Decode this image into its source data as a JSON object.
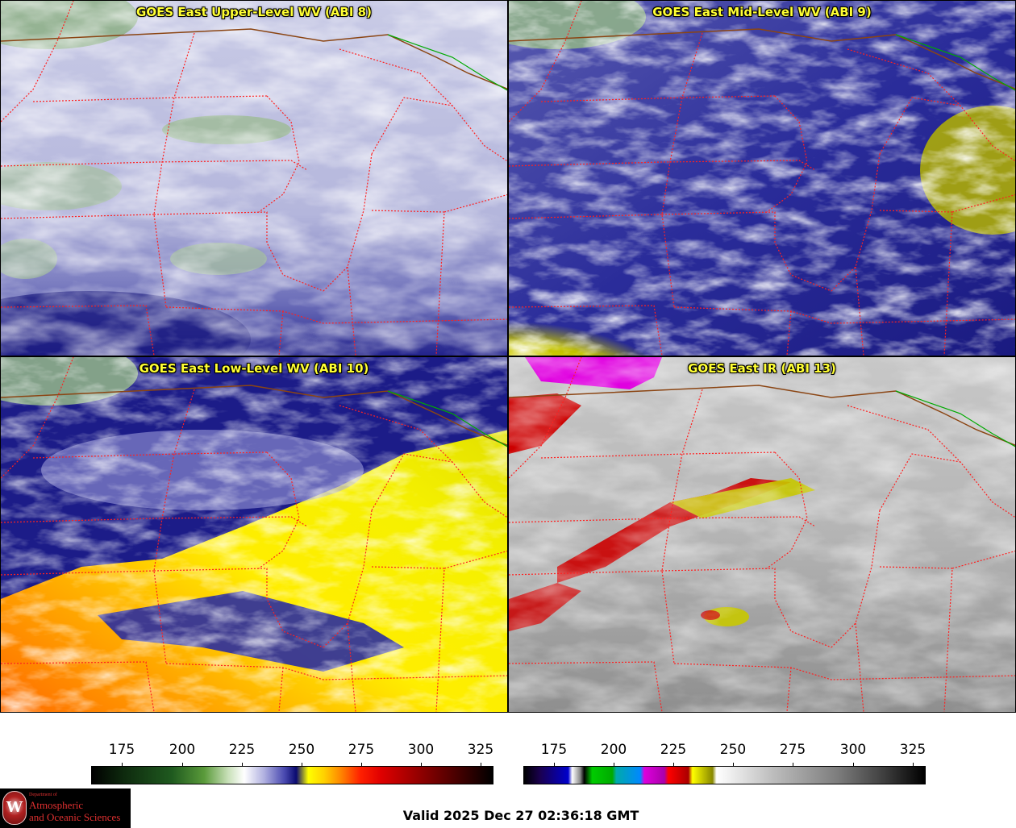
{
  "panels": [
    {
      "id": "upper",
      "title": "GOES East Upper-Level WV (ABI 8)"
    },
    {
      "id": "mid",
      "title": "GOES East Mid-Level WV (ABI 9)"
    },
    {
      "id": "low",
      "title": "GOES East Low-Level WV (ABI 10)"
    },
    {
      "id": "ir",
      "title": "GOES East IR (ABI 13)"
    }
  ],
  "colorbars": {
    "wv": {
      "ticks": [
        "175",
        "200",
        "225",
        "250",
        "275",
        "300",
        "325"
      ]
    },
    "ir": {
      "ticks": [
        "175",
        "200",
        "225",
        "250",
        "275",
        "300",
        "325"
      ]
    }
  },
  "logo": {
    "department_of": "Department of",
    "line1": "Atmospheric",
    "line2": "and Oceanic Sciences",
    "seal_letter": "W"
  },
  "valid_time": "Valid 2025 Dec 27 02:36:18 GMT",
  "colors": {
    "title_text": "#ffff33",
    "state_borders": "#ff2020",
    "national_border": "#8b4513",
    "province_border": "#00aa00"
  }
}
